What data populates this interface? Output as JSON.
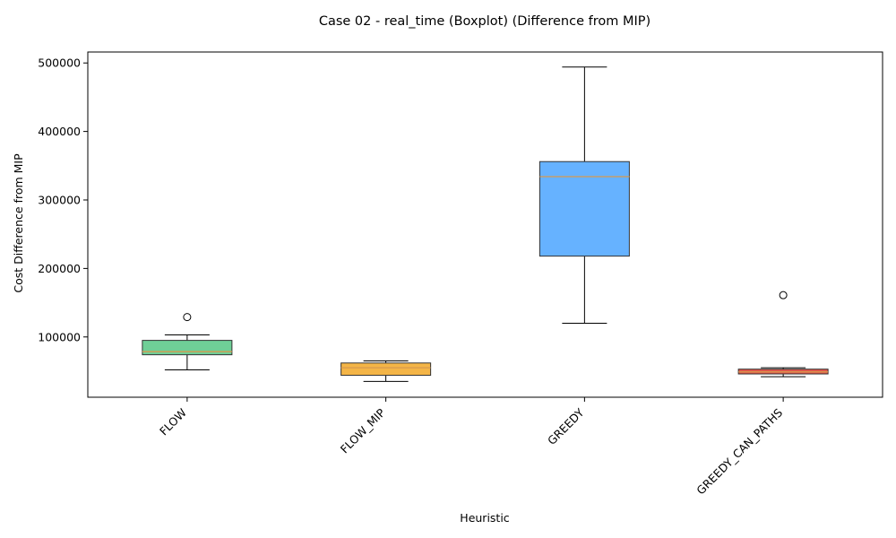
{
  "chart_data": {
    "type": "boxplot",
    "title": "Case 02 - real_time (Boxplot) (Difference from MIP)",
    "xlabel": "Heuristic",
    "ylabel": "Cost Difference from MIP",
    "ylim": [
      12000,
      516000
    ],
    "yticks": [
      100000,
      200000,
      300000,
      400000,
      500000
    ],
    "ytick_labels": [
      "100000",
      "200000",
      "300000",
      "400000",
      "500000"
    ],
    "grid": false,
    "legend": "none",
    "categories": [
      "FLOW",
      "FLOW_MIP",
      "GREEDY",
      "GREEDY_CAN_PATHS"
    ],
    "boxes": [
      {
        "label": "FLOW",
        "whisker_low": 52000,
        "q1": 74000,
        "median": 78500,
        "q3": 95000,
        "whisker_high": 103000,
        "outliers": [
          129000
        ],
        "color": "#6fcf97"
      },
      {
        "label": "FLOW_MIP",
        "whisker_low": 35000,
        "q1": 44000,
        "median": 55000,
        "q3": 62000,
        "whisker_high": 65000,
        "outliers": [],
        "color": "#f4b547"
      },
      {
        "label": "GREEDY",
        "whisker_low": 120000,
        "q1": 218000,
        "median": 334000,
        "q3": 356000,
        "whisker_high": 494000,
        "outliers": [],
        "color": "#66b2ff"
      },
      {
        "label": "GREEDY_CAN_PATHS",
        "whisker_low": 42000,
        "q1": 46000,
        "median": 49000,
        "q3": 53000,
        "whisker_high": 55000,
        "outliers": [
          161000
        ],
        "color": "#e4574a"
      }
    ],
    "median_color": "#d69a4f"
  }
}
